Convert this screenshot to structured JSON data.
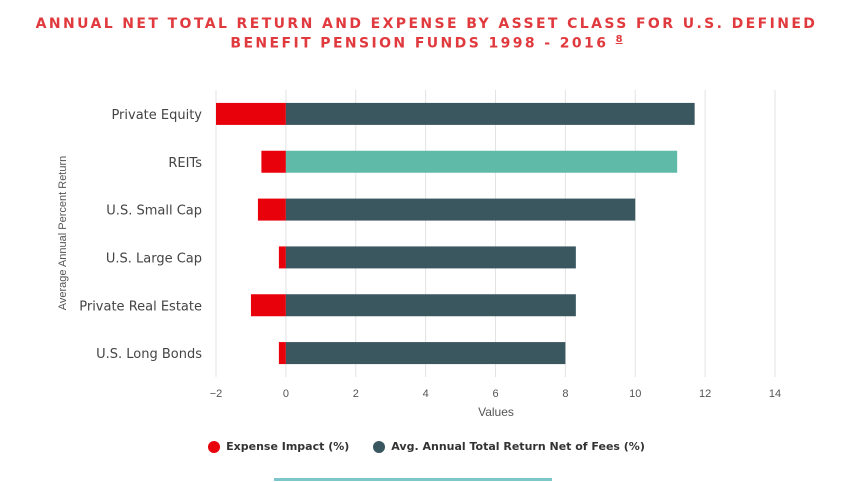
{
  "title": {
    "line1": "ANNUAL NET TOTAL RETURN AND EXPENSE BY ASSET CLASS FOR U.S. DEFINED",
    "line2": "BENEFIT PENSION FUNDS 1998 - 2016",
    "footnote": "8"
  },
  "colors": {
    "expense": "#e8000b",
    "net_return": "#3a5760",
    "highlight": "#5fbaa7",
    "grid": "#e3e3e3",
    "text": "#444444"
  },
  "chart_data": {
    "type": "bar",
    "orientation": "horizontal",
    "stacked": true,
    "categories": [
      "Private Equity",
      "REITs",
      "U.S. Small Cap",
      "U.S. Large Cap",
      "Private Real Estate",
      "U.S. Long Bonds"
    ],
    "series": [
      {
        "name": "Expense Impact (%)",
        "values": [
          -2.0,
          -0.7,
          -0.8,
          -0.2,
          -1.0,
          -0.2
        ]
      },
      {
        "name": "Avg. Annual Total Return Net of Fees (%)",
        "values": [
          11.7,
          11.2,
          10.0,
          8.3,
          8.3,
          8.0
        ]
      }
    ],
    "highlight_category": "REITs",
    "xlabel": "Values",
    "ylabel": "Average Annual Percent Return",
    "xlim": [
      -2,
      14
    ],
    "xticks": [
      -2,
      0,
      2,
      4,
      6,
      8,
      10,
      12,
      14
    ],
    "grid": "vertical",
    "legend_position": "bottom"
  }
}
